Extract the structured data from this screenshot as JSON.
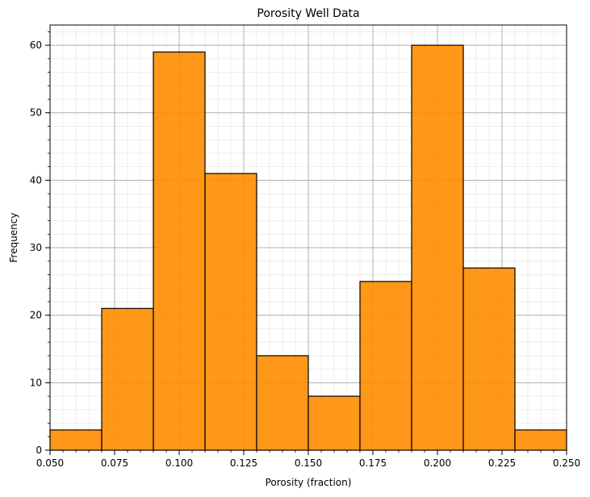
{
  "chart_data": {
    "type": "bar",
    "title": "Porosity Well Data",
    "xlabel": "Porosity (fraction)",
    "ylabel": "Frequency",
    "xlim": [
      0.05,
      0.25
    ],
    "ylim": [
      0,
      63
    ],
    "bin_edges": [
      0.05,
      0.07,
      0.09,
      0.11,
      0.13,
      0.15,
      0.17,
      0.19,
      0.21,
      0.23,
      0.25
    ],
    "values": [
      3,
      21,
      59,
      41,
      14,
      8,
      25,
      60,
      27,
      3
    ],
    "x_ticks": [
      "0.050",
      "0.075",
      "0.100",
      "0.125",
      "0.150",
      "0.175",
      "0.200",
      "0.225",
      "0.250"
    ],
    "x_tick_values": [
      0.05,
      0.075,
      0.1,
      0.125,
      0.15,
      0.175,
      0.2,
      0.225,
      0.25
    ],
    "y_ticks": [
      "0",
      "10",
      "20",
      "30",
      "40",
      "50",
      "60"
    ],
    "y_tick_values": [
      0,
      10,
      20,
      30,
      40,
      50,
      60
    ],
    "grid": true,
    "minor_grid": true,
    "bar_color": "#ff8c00",
    "edge_color": "#000000"
  }
}
